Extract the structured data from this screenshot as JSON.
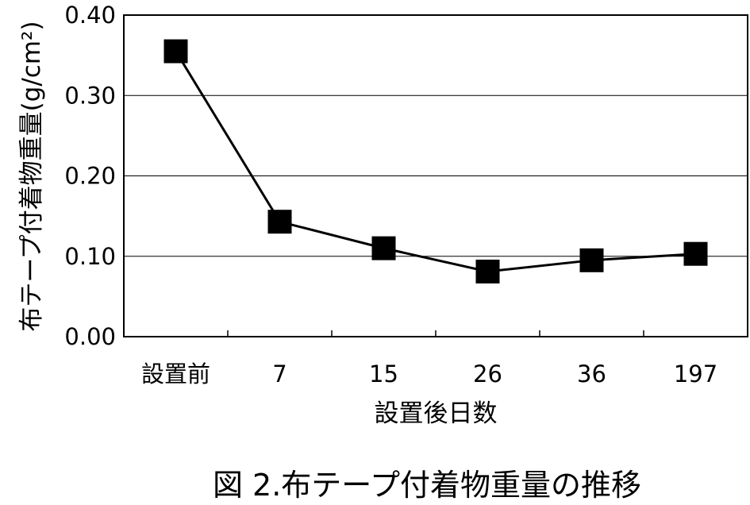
{
  "chart_data": {
    "type": "line",
    "categories": [
      "設置前",
      "7",
      "15",
      "26",
      "36",
      "197"
    ],
    "series": [
      {
        "values": [
          0.355,
          0.143,
          0.11,
          0.081,
          0.095,
          0.103
        ]
      }
    ],
    "xlabel": "設置後日数",
    "ylabel": "布テープ付着物重量(g/cm²)",
    "ylim": [
      0.0,
      0.4
    ],
    "yticks": [
      "0.00",
      "0.10",
      "0.20",
      "0.30",
      "0.40"
    ],
    "grid": true,
    "marker": "square",
    "line_color": "#000000",
    "marker_color": "#000000"
  },
  "caption": "図 2.布テープ付着物重量の推移"
}
